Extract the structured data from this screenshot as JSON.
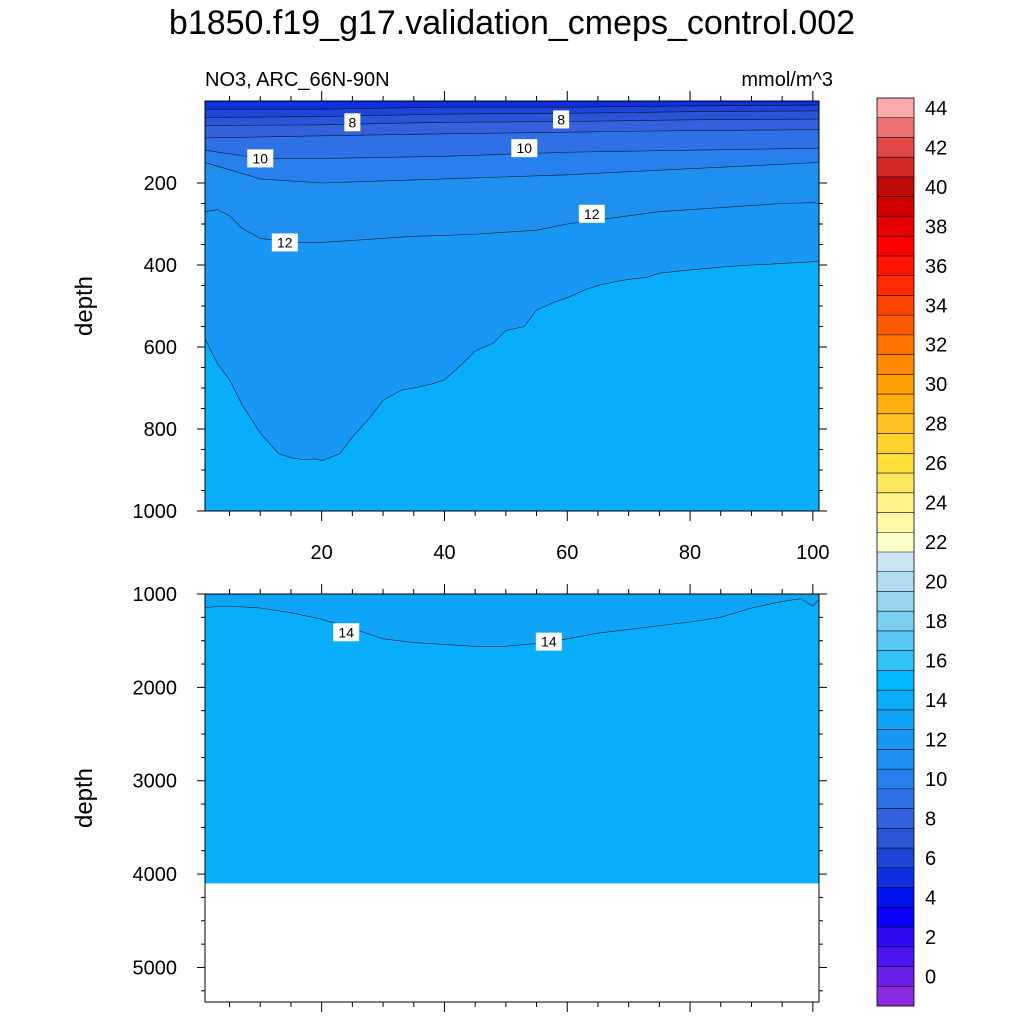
{
  "title": "b1850.f19_g17.validation_cmeps_control.002",
  "subtitle_left": "NO3, ARC_66N-90N",
  "subtitle_right": "mmol/m^3",
  "chart_data": [
    {
      "type": "heatmap",
      "panel": "upper",
      "ylabel": "depth",
      "xlabel": "",
      "xlim": [
        1,
        101
      ],
      "ylim": [
        1000,
        0
      ],
      "x_ticks": [
        20,
        40,
        60,
        80,
        100
      ],
      "y_ticks": [
        200,
        400,
        600,
        800,
        1000
      ],
      "background_level": 14,
      "contours": [
        {
          "level": 6,
          "x": [
            1,
            20,
            40,
            60,
            80,
            101
          ],
          "y": [
            20,
            20,
            15,
            15,
            12,
            10
          ]
        },
        {
          "level": 7,
          "x": [
            1,
            20,
            40,
            60,
            80,
            101
          ],
          "y": [
            40,
            38,
            32,
            30,
            26,
            24
          ]
        },
        {
          "level": 8,
          "x": [
            1,
            20,
            40,
            60,
            80,
            101
          ],
          "y": [
            60,
            58,
            52,
            50,
            46,
            44
          ]
        },
        {
          "level": 9,
          "x": [
            1,
            20,
            40,
            60,
            80,
            101
          ],
          "y": [
            90,
            85,
            80,
            76,
            72,
            70
          ]
        },
        {
          "level": 10,
          "x": [
            1,
            10,
            20,
            40,
            60,
            80,
            101
          ],
          "y": [
            120,
            140,
            140,
            135,
            125,
            120,
            115
          ]
        },
        {
          "level": 11,
          "x": [
            1,
            10,
            20,
            30,
            40,
            60,
            80,
            101
          ],
          "y": [
            150,
            190,
            200,
            195,
            190,
            180,
            165,
            150
          ]
        },
        {
          "level": 12,
          "x": [
            1,
            3,
            5,
            7,
            10,
            15,
            20,
            25,
            30,
            35,
            40,
            45,
            50,
            55,
            60,
            65,
            70,
            75,
            80,
            85,
            90,
            95,
            100,
            101
          ],
          "y": [
            270,
            265,
            280,
            310,
            335,
            345,
            345,
            340,
            335,
            330,
            328,
            325,
            320,
            315,
            300,
            290,
            280,
            270,
            265,
            260,
            255,
            250,
            248,
            250
          ]
        },
        {
          "level": 13,
          "x": [
            1,
            3,
            5,
            7,
            10,
            13,
            15,
            17,
            19,
            20,
            21,
            23,
            25,
            28,
            30,
            33,
            35,
            38,
            40,
            43,
            45,
            48,
            50,
            53,
            55,
            58,
            60,
            63,
            65,
            68,
            70,
            73,
            75,
            78,
            80,
            83,
            85,
            88,
            90,
            93,
            95,
            98,
            100,
            101
          ],
          "y": [
            580,
            640,
            680,
            740,
            810,
            860,
            870,
            875,
            873,
            877,
            872,
            860,
            820,
            770,
            730,
            705,
            700,
            690,
            680,
            640,
            610,
            590,
            560,
            550,
            510,
            490,
            480,
            460,
            450,
            440,
            435,
            430,
            420,
            415,
            412,
            408,
            405,
            402,
            400,
            398,
            396,
            394,
            392,
            390
          ]
        }
      ],
      "contour_labels": [
        {
          "text": "8",
          "x": 25,
          "y": 52
        },
        {
          "text": "8",
          "x": 59,
          "y": 45
        },
        {
          "text": "10",
          "x": 10,
          "y": 140
        },
        {
          "text": "10",
          "x": 53,
          "y": 115
        },
        {
          "text": "12",
          "x": 14,
          "y": 345
        },
        {
          "text": "12",
          "x": 64,
          "y": 275
        }
      ]
    },
    {
      "type": "heatmap",
      "panel": "lower",
      "ylabel": "depth",
      "xlabel": "",
      "xlim": [
        1,
        101
      ],
      "ylim": [
        5370,
        1000
      ],
      "y_ticks": [
        1000,
        2000,
        3000,
        4000,
        5000
      ],
      "background_level": 14,
      "ocean_floor_depth": 4100,
      "contours": [
        {
          "level": 14,
          "x": [
            1,
            3,
            5,
            10,
            15,
            20,
            25,
            30,
            35,
            40,
            45,
            50,
            55,
            60,
            65,
            70,
            75,
            80,
            85,
            90,
            95,
            98,
            100,
            101
          ],
          "y": [
            1150,
            1130,
            1130,
            1150,
            1200,
            1270,
            1370,
            1480,
            1520,
            1540,
            1560,
            1560,
            1530,
            1480,
            1420,
            1380,
            1340,
            1300,
            1250,
            1150,
            1080,
            1050,
            1130,
            1060
          ]
        }
      ],
      "contour_labels": [
        {
          "text": "14",
          "x": 24,
          "y": 1410
        },
        {
          "text": "14",
          "x": 57,
          "y": 1510
        }
      ]
    }
  ],
  "colorbar": {
    "labels": [
      "0",
      "2",
      "4",
      "6",
      "8",
      "10",
      "12",
      "14",
      "16",
      "18",
      "20",
      "22",
      "24",
      "26",
      "28",
      "30",
      "32",
      "34",
      "36",
      "38",
      "40",
      "42",
      "44"
    ],
    "colors": [
      "#8A2BE2",
      "#6A1FE6",
      "#4B14EE",
      "#2E0AF5",
      "#0A00FA",
      "#0014F0",
      "#1030E0",
      "#1E44D8",
      "#2A55D6",
      "#3462DE",
      "#3070E6",
      "#2880EC",
      "#2090F0",
      "#1898F4",
      "#10A4F8",
      "#08AEFA",
      "#00B8FF",
      "#30C2F4",
      "#58C8F2",
      "#7ACEF0",
      "#96D4EE",
      "#B0DCF2",
      "#C8E6F4",
      "#FFFFCC",
      "#FFF8A8",
      "#FFF088",
      "#FFE860",
      "#FFDE3C",
      "#FFD22C",
      "#FFC220",
      "#FFB010",
      "#FFA000",
      "#FF8A00",
      "#FF7400",
      "#FF5A00",
      "#FF4200",
      "#FF2A00",
      "#FF1400",
      "#FF0000",
      "#E80000",
      "#D00000",
      "#C00A0A",
      "#D42828",
      "#E24848",
      "#EC7070",
      "#FAAAAA"
    ],
    "vmin": -1,
    "vmax": 45
  }
}
